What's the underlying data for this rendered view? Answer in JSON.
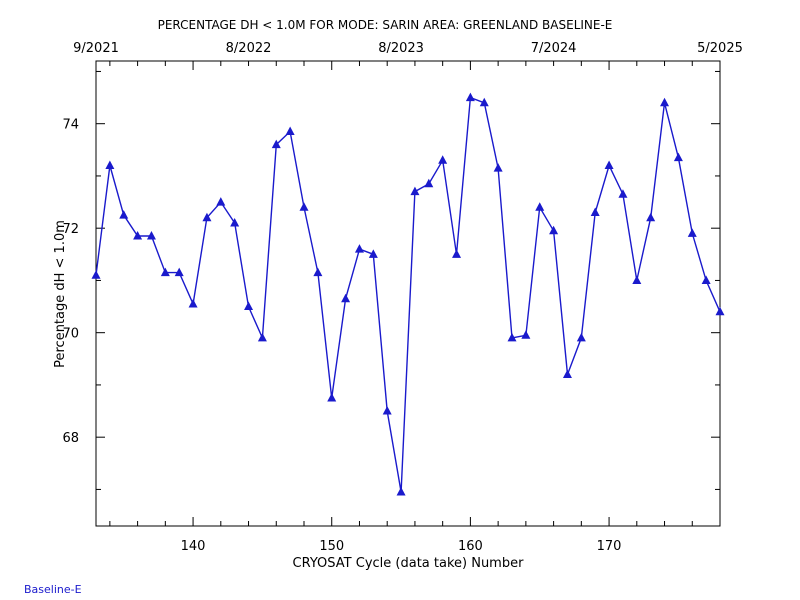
{
  "chart_data": {
    "type": "line",
    "title": "PERCENTAGE DH < 1.0M FOR MODE: SARIN AREA: GREENLAND BASELINE-E",
    "xlabel": "CRYOSAT Cycle (data take) Number",
    "ylabel": "Percentage dH < 1.0m",
    "xlim": [
      133,
      178
    ],
    "ylim": [
      66.3,
      75.2
    ],
    "x_ticks": [
      140,
      150,
      160,
      170
    ],
    "y_ticks": [
      68,
      70,
      72,
      74
    ],
    "top_axis": {
      "tick_labels": [
        "9/2021",
        "8/2022",
        "8/2023",
        "7/2024",
        "5/2025"
      ],
      "tick_x": [
        133,
        144,
        155,
        166,
        178
      ]
    },
    "grid": false,
    "line_color": "#1a1acc",
    "marker": "triangle",
    "series": [
      {
        "x": [
          133,
          134,
          135,
          136,
          137,
          138,
          139,
          140,
          141,
          142,
          143,
          144,
          145,
          146,
          147,
          148,
          149,
          150,
          151,
          152,
          153,
          154,
          155,
          156,
          157,
          158,
          159,
          160,
          161,
          162,
          163,
          164,
          165,
          166,
          167,
          168,
          169,
          170,
          171,
          172,
          173,
          174,
          175,
          176,
          177,
          178
        ],
        "values": [
          71.1,
          73.2,
          72.25,
          71.85,
          71.85,
          71.15,
          71.15,
          70.55,
          72.2,
          72.5,
          72.1,
          70.5,
          69.9,
          73.6,
          73.85,
          72.4,
          71.15,
          68.75,
          70.65,
          71.6,
          71.5,
          68.5,
          66.95,
          72.7,
          72.85,
          73.3,
          71.5,
          74.5,
          74.4,
          73.15,
          69.9,
          69.95,
          72.4,
          71.95,
          69.2,
          69.9,
          72.3,
          73.2,
          72.65,
          71.0,
          72.2,
          74.4,
          73.35,
          71.9,
          71.0,
          70.4
        ]
      }
    ]
  },
  "footer": {
    "label": "Baseline-E"
  }
}
